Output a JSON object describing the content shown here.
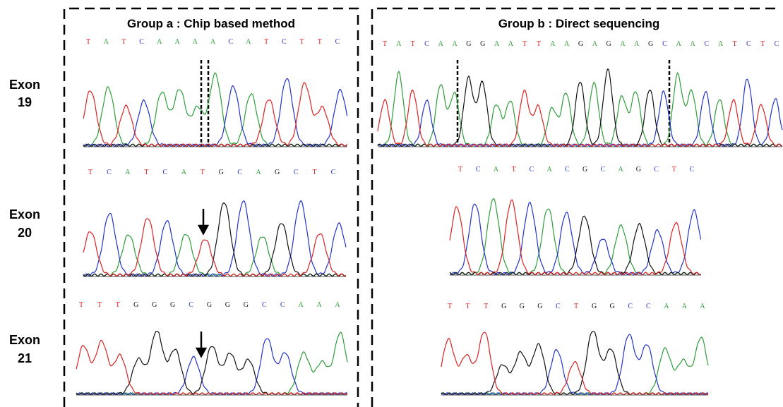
{
  "exons": [
    {
      "name": "Exon",
      "number": "19"
    },
    {
      "name": "Exon",
      "number": "20"
    },
    {
      "name": "Exon",
      "number": "21"
    }
  ],
  "panels": [
    {
      "title": "Group a : Chip based method",
      "rows": [
        {
          "bases": [
            "T",
            "A",
            "T",
            "C",
            "A",
            "A",
            "A",
            "A",
            "C",
            "A",
            "T",
            "C",
            "T",
            "T",
            "C"
          ]
        },
        {
          "bases": [
            "T",
            "C",
            "A",
            "T",
            "C",
            "A",
            "T",
            "G",
            "C",
            "A",
            "G",
            "C",
            "T",
            "C"
          ]
        },
        {
          "bases": [
            "T",
            "T",
            "T",
            "G",
            "G",
            "G",
            "C",
            "G",
            "G",
            "G",
            "C",
            "C",
            "A",
            "A",
            "A"
          ]
        }
      ]
    },
    {
      "title": "Group b : Direct sequencing",
      "rows": [
        {
          "bases": [
            "T",
            "A",
            "T",
            "C",
            "A",
            "A",
            "G",
            "G",
            "A",
            "A",
            "T",
            "T",
            "A",
            "A",
            "G",
            "A",
            "G",
            "A",
            "A",
            "G",
            "C",
            "A",
            "A",
            "C",
            "A",
            "T",
            "C",
            "T",
            "C"
          ]
        },
        {
          "bases": [
            "T",
            "C",
            "A",
            "T",
            "C",
            "A",
            "C",
            "G",
            "C",
            "A",
            "G",
            "C",
            "T",
            "C"
          ]
        },
        {
          "bases": [
            "T",
            "T",
            "T",
            "G",
            "G",
            "G",
            "C",
            "T",
            "G",
            "G",
            "C",
            "C",
            "A",
            "A",
            "A"
          ]
        }
      ]
    }
  ]
}
